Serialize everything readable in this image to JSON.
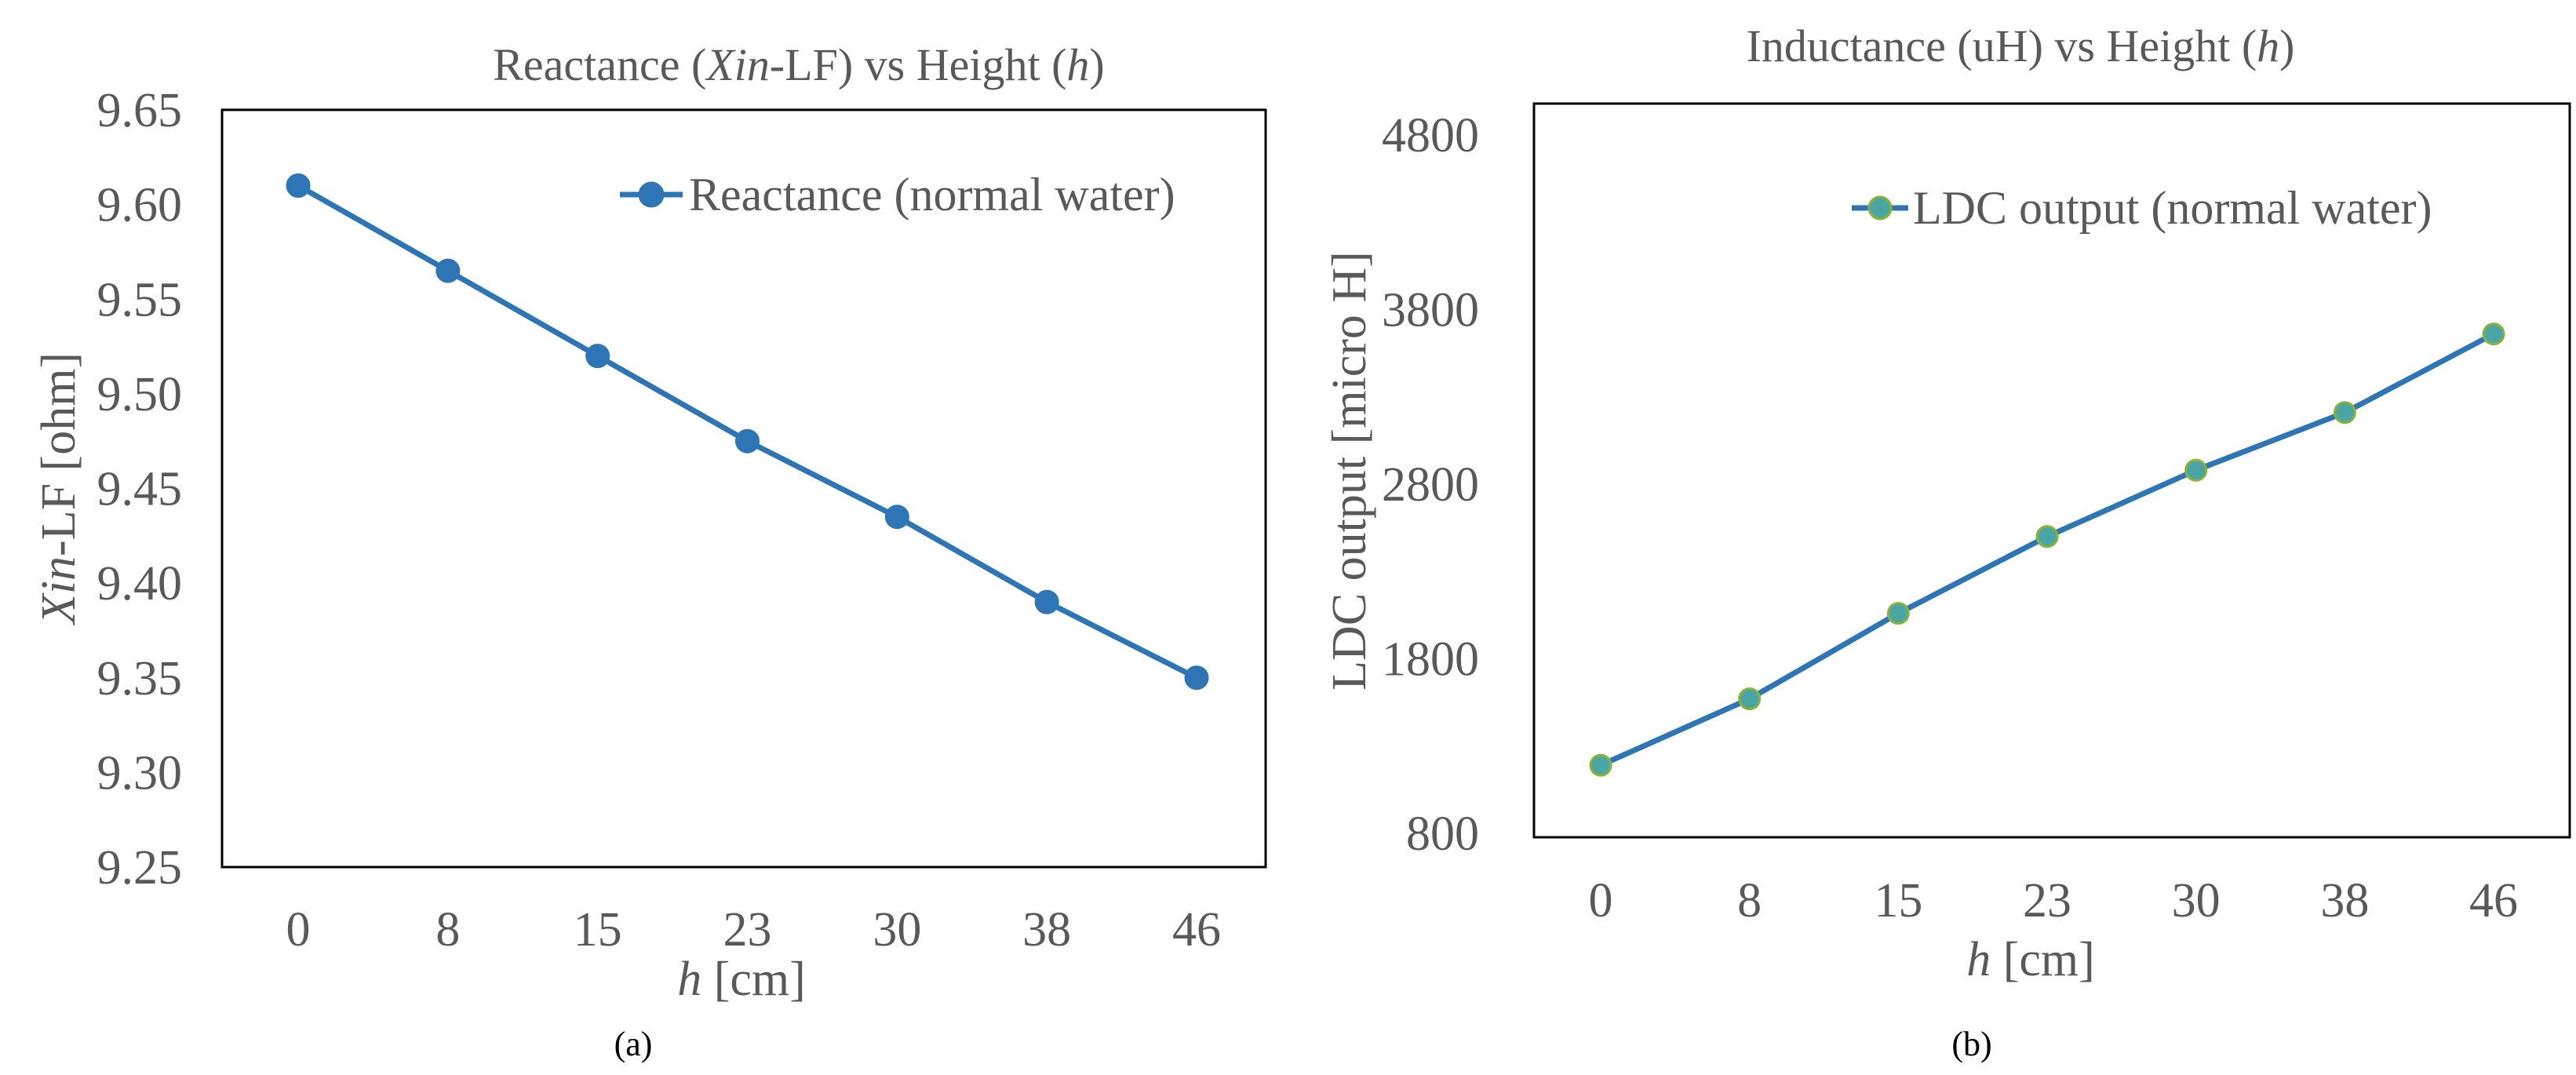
{
  "chart_data": [
    {
      "type": "line",
      "title": {
        "pre": "Reactance (",
        "italic": "Xin",
        "mid": "-LF) vs Height (",
        "italic2": "h",
        "post": ")"
      },
      "xlabel": {
        "italic": "h",
        "rest": " [cm]"
      },
      "ylabel": {
        "italic": "Xin",
        "rest": "-LF [ohm]"
      },
      "categories": [
        "0",
        "8",
        "15",
        "23",
        "30",
        "38",
        "46"
      ],
      "ylim": [
        9.25,
        9.65
      ],
      "yticks": [
        "9.25",
        "9.30",
        "9.35",
        "9.40",
        "9.45",
        "9.50",
        "9.55",
        "9.60",
        "9.65"
      ],
      "ytick_values": [
        9.25,
        9.3,
        9.35,
        9.4,
        9.45,
        9.5,
        9.55,
        9.6,
        9.65
      ],
      "series": [
        {
          "name": "Reactance (normal water)",
          "values": [
            9.61,
            9.565,
            9.52,
            9.475,
            9.435,
            9.39,
            9.35
          ],
          "color": "#2e75b6",
          "marker_fill": "#2e75b6",
          "marker_stroke": "#2e75b6"
        }
      ],
      "legend_position": "top-right",
      "grid": false,
      "caption": "(a)"
    },
    {
      "type": "line",
      "title": {
        "pre": "Inductance (uH) vs Height (",
        "italic": "h",
        "post": ")"
      },
      "xlabel": {
        "italic": "h",
        "rest": " [cm]"
      },
      "ylabel": {
        "italic": "",
        "rest": "LDC output [micro H]"
      },
      "categories": [
        "0",
        "8",
        "15",
        "23",
        "30",
        "38",
        "46"
      ],
      "ylim": [
        800,
        4800
      ],
      "yticks": [
        "800",
        "1800",
        "2800",
        "3800",
        "4800"
      ],
      "ytick_values": [
        800,
        1800,
        2800,
        3800,
        4800
      ],
      "series": [
        {
          "name": "LDC output (normal water)",
          "values": [
            1190,
            1570,
            2060,
            2500,
            2880,
            3210,
            3660
          ],
          "color": "#2e75b6",
          "marker_fill": "#4aa5a5",
          "marker_stroke": "#8ab23a"
        }
      ],
      "legend_position": "top-right",
      "grid": false,
      "caption": "(b)"
    }
  ]
}
